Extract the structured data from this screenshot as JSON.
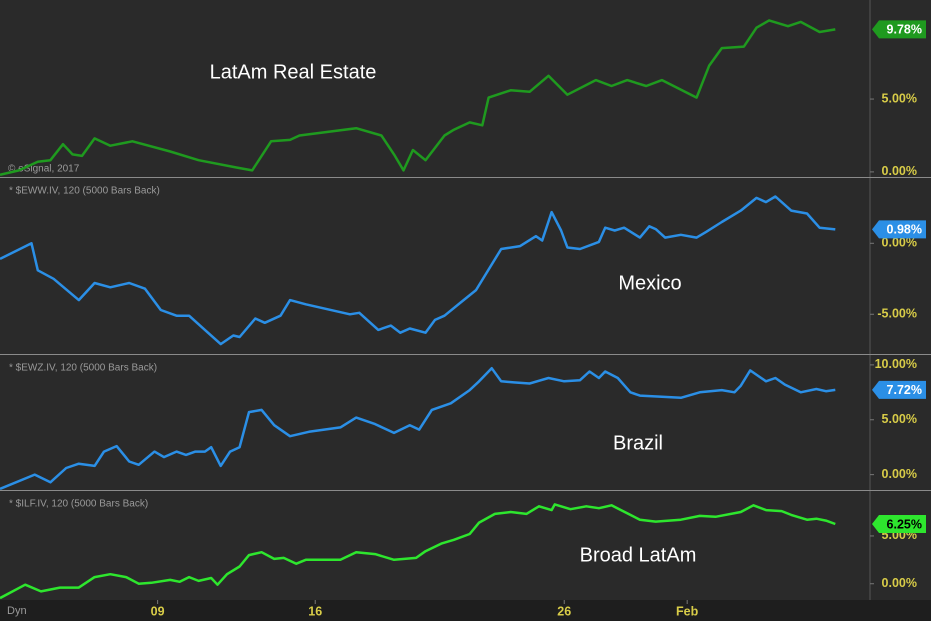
{
  "chart_data": [
    {
      "type": "line",
      "annotation": "LatAm Real Estate",
      "credit": "© eSignal, 2017",
      "color": "#1f9a1f",
      "x": [
        0,
        0.6,
        1.2,
        1.6,
        2.0,
        2.3,
        2.6,
        3.0,
        3.5,
        4.2,
        5.4,
        6.3,
        7.5,
        8.0,
        8.6,
        9.2,
        9.5,
        11.3,
        12.1,
        12.5,
        12.8,
        13.1,
        13.5,
        14.1,
        14.4,
        14.9,
        15.3,
        15.5,
        16.2,
        16.8,
        17.4,
        18.0,
        18.9,
        19.4,
        19.9,
        20.5,
        21.0,
        22.1,
        22.5,
        22.9,
        23.6,
        24.0,
        24.4,
        25.0,
        25.4,
        26.0,
        26.5
      ],
      "values": [
        -0.2,
        0.1,
        0.7,
        0.8,
        1.9,
        1.2,
        1.1,
        2.3,
        1.8,
        2.1,
        1.4,
        0.8,
        0.3,
        0.1,
        2.1,
        2.2,
        2.5,
        3.0,
        2.5,
        1.2,
        0.1,
        1.5,
        0.8,
        2.5,
        2.9,
        3.4,
        3.2,
        5.1,
        5.6,
        5.5,
        6.6,
        5.3,
        6.3,
        5.9,
        6.3,
        5.9,
        6.3,
        5.1,
        7.3,
        8.5,
        8.6,
        9.9,
        10.4,
        10.0,
        10.3,
        9.6,
        9.78
      ],
      "value_labels": [
        null,
        null,
        null,
        null,
        null,
        null,
        null,
        null,
        null,
        null,
        null,
        null,
        null,
        null,
        null,
        null,
        null,
        null,
        null,
        null,
        null,
        null,
        null,
        null,
        null,
        null,
        null,
        null,
        null,
        null,
        null,
        null,
        null,
        null,
        null,
        null,
        null,
        null,
        null,
        null,
        null,
        null,
        null,
        null,
        null,
        null,
        "9.78%"
      ],
      "ylim": [
        -0.35,
        11.8
      ],
      "yticks": [
        {
          "value": 0,
          "label": "0.00%"
        },
        {
          "value": 5,
          "label": "5.00%"
        }
      ]
    },
    {
      "type": "line",
      "subtitle": "* $EWW.IV, 120 (5000 Bars Back)",
      "annotation": "Mexico",
      "color": "#2b8fe6",
      "x": [
        0,
        1.0,
        1.2,
        1.7,
        2.5,
        3.0,
        3.5,
        4.1,
        4.6,
        5.1,
        5.6,
        6.0,
        6.5,
        7.0,
        7.4,
        7.6,
        8.1,
        8.4,
        8.9,
        9.2,
        9.7,
        11.1,
        11.4,
        12.0,
        12.4,
        12.7,
        13.0,
        13.5,
        13.8,
        14.1,
        14.6,
        15.1,
        15.9,
        16.5,
        17.0,
        17.2,
        17.5,
        17.8,
        18.0,
        18.4,
        19.0,
        19.2,
        19.5,
        19.8,
        20.3,
        20.6,
        20.8,
        21.1,
        21.6,
        22.1,
        22.4,
        22.9,
        23.5,
        24.0,
        24.3,
        24.6,
        25.1,
        25.6,
        26.0,
        26.5
      ],
      "values": [
        -1.1,
        0.0,
        -1.9,
        -2.5,
        -4.0,
        -2.8,
        -3.1,
        -2.8,
        -3.2,
        -4.7,
        -5.1,
        -5.1,
        -6.1,
        -7.1,
        -6.5,
        -6.6,
        -5.3,
        -5.6,
        -5.1,
        -4.0,
        -4.3,
        -5.0,
        -4.9,
        -6.1,
        -5.8,
        -6.3,
        -6.0,
        -6.3,
        -5.4,
        -5.1,
        -4.2,
        -3.3,
        -0.4,
        -0.2,
        0.5,
        0.2,
        2.2,
        0.9,
        -0.3,
        -0.4,
        0.1,
        1.1,
        0.9,
        1.1,
        0.4,
        1.2,
        1.0,
        0.4,
        0.6,
        0.4,
        0.8,
        1.5,
        2.3,
        3.2,
        2.9,
        3.3,
        2.3,
        2.1,
        1.1,
        0.98
      ],
      "value_labels": [
        null,
        null,
        null,
        null,
        null,
        null,
        null,
        null,
        null,
        null,
        null,
        null,
        null,
        null,
        null,
        null,
        null,
        null,
        null,
        null,
        null,
        null,
        null,
        null,
        null,
        null,
        null,
        null,
        null,
        null,
        null,
        null,
        null,
        null,
        null,
        null,
        null,
        null,
        null,
        null,
        null,
        null,
        null,
        null,
        null,
        null,
        null,
        null,
        null,
        null,
        null,
        null,
        null,
        null,
        null,
        null,
        null,
        null,
        null,
        "0.98%"
      ],
      "ylim": [
        -7.8,
        4.6
      ],
      "yticks": [
        {
          "value": -5,
          "label": "-5.00%"
        },
        {
          "value": 0,
          "label": "0.00%"
        }
      ]
    },
    {
      "type": "line",
      "subtitle": "* $EWZ.IV, 120 (5000 Bars Back)",
      "annotation": "Brazil",
      "color": "#2b8fe6",
      "x": [
        0,
        1.1,
        1.6,
        2.1,
        2.5,
        3.0,
        3.3,
        3.7,
        4.1,
        4.4,
        4.9,
        5.2,
        5.6,
        5.9,
        6.2,
        6.5,
        6.7,
        7.0,
        7.3,
        7.6,
        7.9,
        8.3,
        8.7,
        9.2,
        9.8,
        10.8,
        11.3,
        11.9,
        12.5,
        13.0,
        13.3,
        13.7,
        14.3,
        14.9,
        15.2,
        15.6,
        15.9,
        16.3,
        16.8,
        17.4,
        17.9,
        18.4,
        18.7,
        19.0,
        19.2,
        19.6,
        20.0,
        20.3,
        21.0,
        21.6,
        22.2,
        22.9,
        23.3,
        23.5,
        23.8,
        24.3,
        24.6,
        24.9,
        25.4,
        25.9,
        26.2,
        26.5
      ],
      "values": [
        -1.3,
        0.0,
        -0.7,
        0.6,
        1.0,
        0.8,
        2.1,
        2.6,
        1.2,
        0.9,
        2.1,
        1.6,
        2.1,
        1.8,
        2.1,
        2.1,
        2.5,
        0.8,
        2.1,
        2.5,
        5.7,
        5.9,
        4.5,
        3.5,
        3.9,
        4.3,
        5.2,
        4.6,
        3.8,
        4.5,
        4.1,
        5.9,
        6.5,
        7.7,
        8.5,
        9.7,
        8.5,
        8.4,
        8.3,
        8.8,
        8.5,
        8.6,
        9.4,
        8.8,
        9.4,
        8.8,
        7.5,
        7.2,
        7.1,
        7.0,
        7.5,
        7.7,
        7.5,
        8.1,
        9.5,
        8.5,
        8.8,
        8.2,
        7.5,
        7.8,
        7.6,
        7.72
      ],
      "value_labels": [
        null,
        null,
        null,
        null,
        null,
        null,
        null,
        null,
        null,
        null,
        null,
        null,
        null,
        null,
        null,
        null,
        null,
        null,
        null,
        null,
        null,
        null,
        null,
        null,
        null,
        null,
        null,
        null,
        null,
        null,
        null,
        null,
        null,
        null,
        null,
        null,
        null,
        null,
        null,
        null,
        null,
        null,
        null,
        null,
        null,
        null,
        null,
        null,
        null,
        null,
        null,
        null,
        null,
        null,
        null,
        null,
        null,
        null,
        null,
        null,
        null,
        "7.72%"
      ],
      "ylim": [
        -1.4,
        10.9
      ],
      "yticks": [
        {
          "value": 0,
          "label": "0.00%"
        },
        {
          "value": 5,
          "label": "5.00%"
        },
        {
          "value": 10,
          "label": "10.00%"
        }
      ]
    },
    {
      "type": "line",
      "subtitle": "* $ILF.IV, 120 (5000 Bars Back)",
      "annotation": "Broad LatAm",
      "color": "#2ee62e",
      "x": [
        0,
        0.8,
        1.3,
        1.9,
        2.5,
        3.0,
        3.5,
        4.0,
        4.4,
        4.8,
        5.4,
        5.7,
        6.0,
        6.3,
        6.7,
        6.9,
        7.2,
        7.6,
        7.9,
        8.3,
        8.7,
        9.0,
        9.4,
        9.7,
        10.8,
        11.3,
        11.9,
        12.5,
        13.2,
        13.5,
        14.0,
        14.4,
        14.9,
        15.2,
        15.7,
        16.2,
        16.7,
        17.1,
        17.5,
        17.6,
        18.1,
        18.6,
        19.0,
        19.4,
        20.0,
        20.3,
        20.8,
        21.6,
        22.2,
        22.7,
        23.5,
        23.9,
        24.3,
        24.8,
        25.1,
        25.6,
        25.9,
        26.2,
        26.5
      ],
      "values": [
        -1.5,
        -0.1,
        -0.8,
        -0.4,
        -0.4,
        0.7,
        1.0,
        0.7,
        0.0,
        0.1,
        0.4,
        0.2,
        0.7,
        0.3,
        0.6,
        -0.1,
        1.0,
        1.8,
        3.0,
        3.3,
        2.6,
        2.7,
        2.1,
        2.5,
        2.5,
        3.3,
        3.1,
        2.5,
        2.7,
        3.4,
        4.2,
        4.6,
        5.2,
        6.4,
        7.3,
        7.5,
        7.3,
        8.1,
        7.7,
        8.3,
        7.8,
        8.1,
        7.9,
        8.2,
        7.2,
        6.7,
        6.5,
        6.7,
        7.1,
        7.0,
        7.5,
        8.2,
        7.7,
        7.6,
        7.2,
        6.7,
        6.8,
        6.6,
        6.25
      ],
      "value_labels": [
        null,
        null,
        null,
        null,
        null,
        null,
        null,
        null,
        null,
        null,
        null,
        null,
        null,
        null,
        null,
        null,
        null,
        null,
        null,
        null,
        null,
        null,
        null,
        null,
        null,
        null,
        null,
        null,
        null,
        null,
        null,
        null,
        null,
        null,
        null,
        null,
        null,
        null,
        null,
        null,
        null,
        null,
        null,
        null,
        null,
        null,
        null,
        null,
        null,
        null,
        null,
        null,
        null,
        null,
        null,
        null,
        null,
        null,
        "6.25%"
      ],
      "ylim": [
        -1.7,
        9.7
      ],
      "yticks": [
        {
          "value": 0,
          "label": "0.00%"
        },
        {
          "value": 5,
          "label": "5.00%"
        }
      ],
      "xlim": [
        0,
        27.6
      ],
      "xticks": [
        {
          "value": 5,
          "label": "09"
        },
        {
          "value": 10,
          "label": "16"
        },
        {
          "value": 17.9,
          "label": "26"
        },
        {
          "value": 21.8,
          "label": "Feb"
        }
      ],
      "corner_label": "Dyn"
    }
  ]
}
